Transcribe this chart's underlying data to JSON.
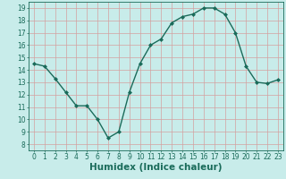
{
  "x": [
    0,
    1,
    2,
    3,
    4,
    5,
    6,
    7,
    8,
    9,
    10,
    11,
    12,
    13,
    14,
    15,
    16,
    17,
    18,
    19,
    20,
    21,
    22,
    23
  ],
  "y": [
    14.5,
    14.3,
    13.3,
    12.2,
    11.1,
    11.1,
    10.0,
    8.5,
    9.0,
    12.2,
    14.5,
    16.0,
    16.5,
    17.8,
    18.3,
    18.5,
    19.0,
    19.0,
    18.5,
    17.0,
    14.3,
    13.0,
    12.9,
    13.2
  ],
  "line_color": "#1a6b5a",
  "marker": "D",
  "marker_size": 2.0,
  "bg_color": "#c8ecea",
  "grid_color": "#d4a0a0",
  "xlabel": "Humidex (Indice chaleur)",
  "ylabel": "",
  "xlim": [
    -0.5,
    23.5
  ],
  "ylim": [
    7.5,
    19.5
  ],
  "yticks": [
    8,
    9,
    10,
    11,
    12,
    13,
    14,
    15,
    16,
    17,
    18,
    19
  ],
  "xticks": [
    0,
    1,
    2,
    3,
    4,
    5,
    6,
    7,
    8,
    9,
    10,
    11,
    12,
    13,
    14,
    15,
    16,
    17,
    18,
    19,
    20,
    21,
    22,
    23
  ],
  "tick_label_fontsize": 5.5,
  "xlabel_fontsize": 7.5,
  "line_width": 1.0
}
